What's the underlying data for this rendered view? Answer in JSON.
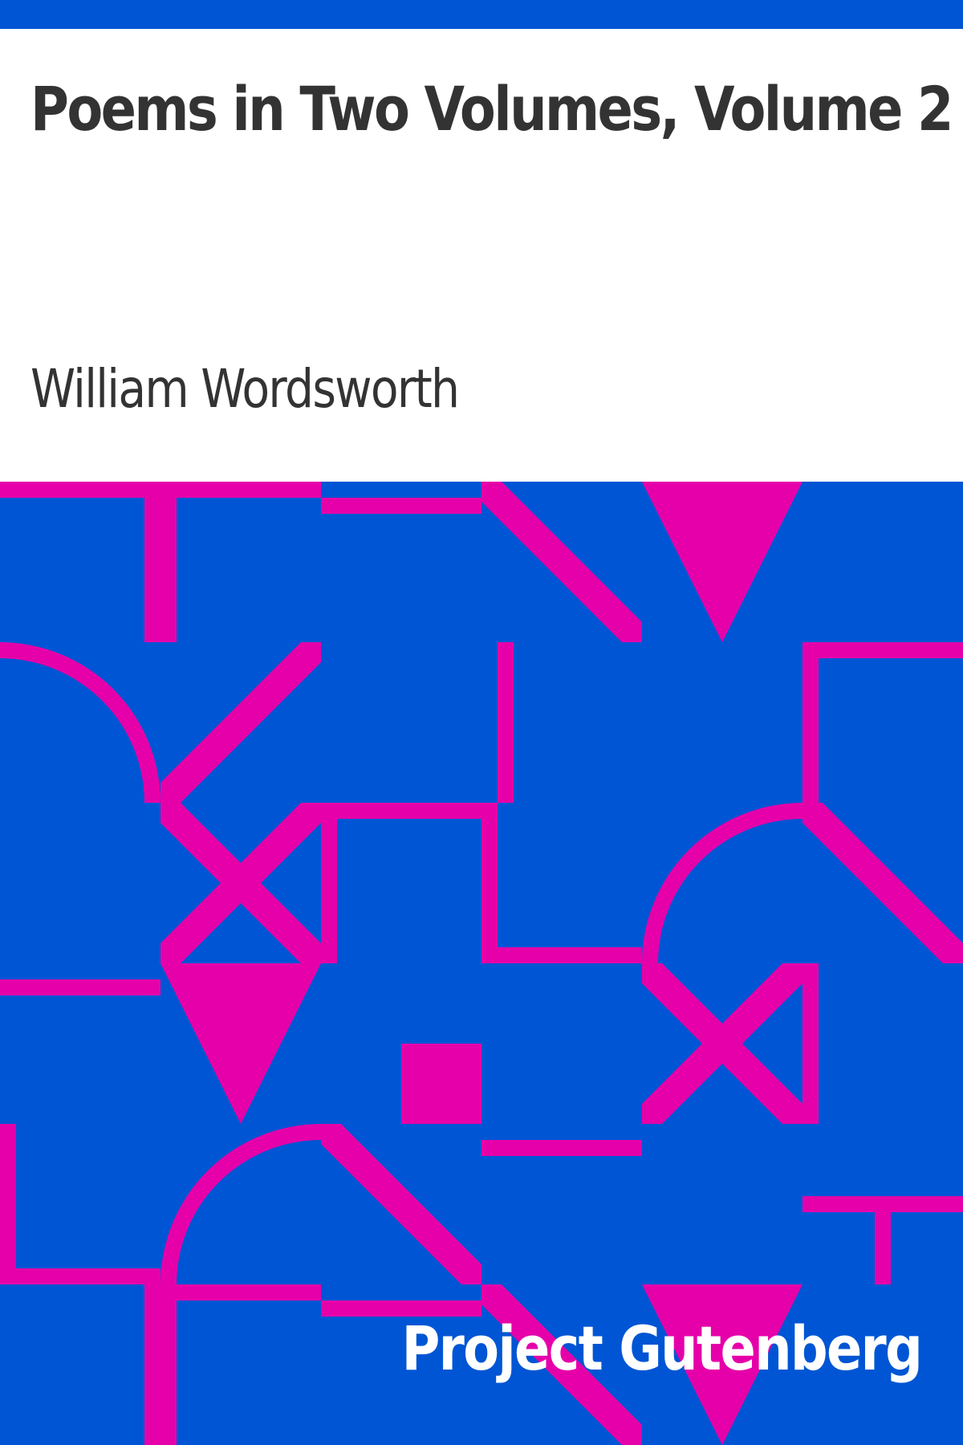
{
  "book": {
    "title": "Poems in Two Volumes, Volume 2",
    "author": "William Wordsworth",
    "publisher": "Project Gutenberg"
  },
  "colors": {
    "background": "#ffffff",
    "accent_blue": "#0055d4",
    "pattern_magenta": "#e600a9",
    "text_dark": "#333333",
    "text_light": "#ffffff"
  },
  "icons": [
    "geometric-pattern"
  ]
}
